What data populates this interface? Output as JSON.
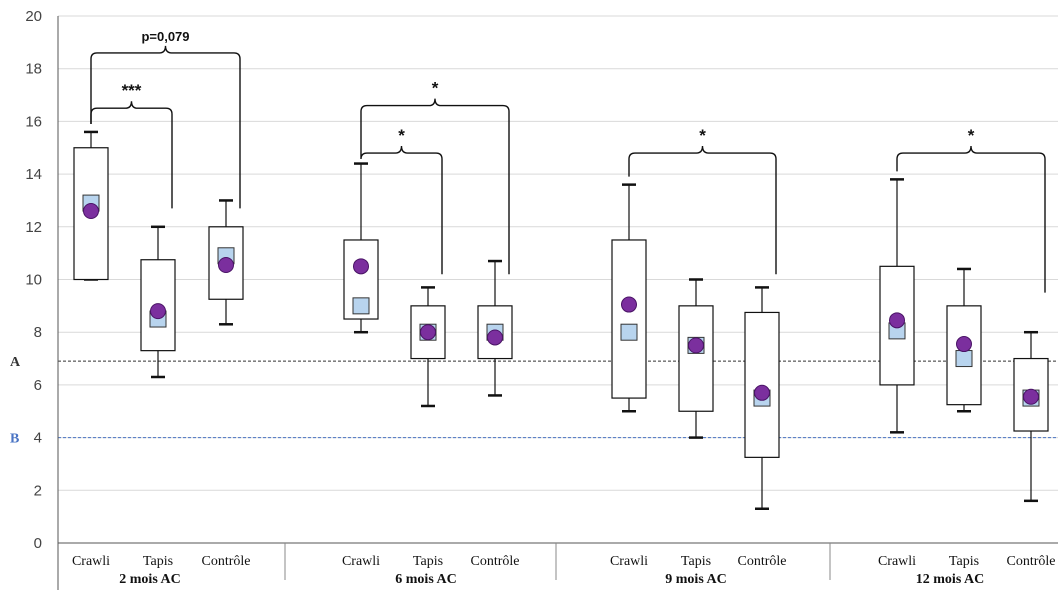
{
  "chart_data": {
    "type": "box",
    "ylim": [
      0,
      20
    ],
    "yticks": [
      "0",
      "2",
      "4",
      "6",
      "8",
      "10",
      "12",
      "14",
      "16",
      "18",
      "20"
    ],
    "grid": true,
    "category_labels": [
      "Crawli",
      "Tapis",
      "Contrôle"
    ],
    "groups": [
      {
        "label": "2 mois AC",
        "boxes": [
          {
            "category": "Crawli",
            "min": 10.0,
            "q1": 10.0,
            "q3": 15.0,
            "max": 15.6,
            "median_square": 12.9,
            "mean_circle": 12.6
          },
          {
            "category": "Tapis",
            "min": 6.3,
            "q1": 7.3,
            "q3": 10.75,
            "max": 12.0,
            "median_square": 8.5,
            "mean_circle": 8.8
          },
          {
            "category": "Contrôle",
            "min": 8.3,
            "q1": 9.25,
            "q3": 12.0,
            "max": 13.0,
            "median_square": 10.9,
            "mean_circle": 10.55
          }
        ],
        "annotations": [
          {
            "label": "***",
            "from": "Crawli",
            "to": "Tapis",
            "level": 16.5,
            "end_to": 12.7
          },
          {
            "label": "p=0,079",
            "from": "Crawli",
            "to": "Contrôle",
            "level": 18.6,
            "end_to": 12.7
          }
        ]
      },
      {
        "label": "6 mois AC",
        "boxes": [
          {
            "category": "Crawli",
            "min": 8.0,
            "q1": 8.5,
            "q3": 11.5,
            "max": 14.4,
            "median_square": 9.0,
            "mean_circle": 10.5
          },
          {
            "category": "Tapis",
            "min": 5.2,
            "q1": 7.0,
            "q3": 9.0,
            "max": 9.7,
            "median_square": 8.0,
            "mean_circle": 8.0
          },
          {
            "category": "Contrôle",
            "min": 5.6,
            "q1": 7.0,
            "q3": 9.0,
            "max": 10.7,
            "median_square": 8.0,
            "mean_circle": 7.8
          }
        ],
        "annotations": [
          {
            "label": "*",
            "from": "Crawli",
            "to": "Tapis",
            "level": 14.8,
            "end_to": 10.2
          },
          {
            "label": "*",
            "from": "Crawli",
            "to": "Contrôle",
            "level": 16.6,
            "end_to": 10.2
          }
        ]
      },
      {
        "label": "9 mois AC",
        "boxes": [
          {
            "category": "Crawli",
            "min": 5.0,
            "q1": 5.5,
            "q3": 11.5,
            "max": 13.6,
            "median_square": 8.0,
            "mean_circle": 9.05
          },
          {
            "category": "Tapis",
            "min": 4.0,
            "q1": 5.0,
            "q3": 9.0,
            "max": 10.0,
            "median_square": 7.5,
            "mean_circle": 7.5
          },
          {
            "category": "Contrôle",
            "min": 1.3,
            "q1": 3.25,
            "q3": 8.75,
            "max": 9.7,
            "median_square": 5.5,
            "mean_circle": 5.7
          }
        ],
        "annotations": [
          {
            "label": "*",
            "from": "Crawli",
            "to": "Contrôle",
            "level": 14.8,
            "end_to": 10.2
          }
        ]
      },
      {
        "label": "12 mois AC",
        "boxes": [
          {
            "category": "Crawli",
            "min": 4.2,
            "q1": 6.0,
            "q3": 10.5,
            "max": 13.8,
            "median_square": 8.05,
            "mean_circle": 8.45
          },
          {
            "category": "Tapis",
            "min": 5.0,
            "q1": 5.25,
            "q3": 9.0,
            "max": 10.4,
            "median_square": 7.0,
            "mean_circle": 7.55
          },
          {
            "category": "Contrôle",
            "min": 1.6,
            "q1": 4.25,
            "q3": 7.0,
            "max": 8.0,
            "median_square": 5.5,
            "mean_circle": 5.55
          }
        ],
        "annotations": [
          {
            "label": "*",
            "from": "Crawli",
            "to": "Contrôle",
            "level": 14.8,
            "end_to": 9.5
          }
        ]
      }
    ],
    "reference_lines": [
      {
        "label": "A",
        "y": 6.9,
        "color": "#333333"
      },
      {
        "label": "B",
        "y": 4.0,
        "color": "#4a74c4"
      }
    ],
    "colors": {
      "median_square": "#b8d4ee",
      "mean_circle": "#7b2f9e",
      "box_fill": "#ffffff",
      "stroke": "#111111",
      "grid": "#d9d9d9"
    }
  }
}
